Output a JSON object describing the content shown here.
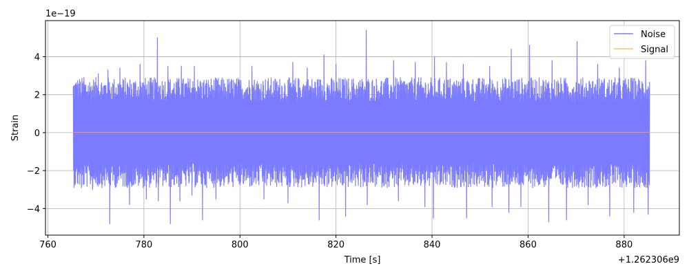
{
  "chart_data": {
    "type": "line",
    "xlabel": "Time [s]",
    "ylabel": "Strain",
    "x_offset_label": "+1.262306e9",
    "y_scale_label": "1e−19",
    "x_ticks": [
      760,
      780,
      800,
      820,
      840,
      860,
      880
    ],
    "x_tick_labels": [
      "760",
      "780",
      "800",
      "820",
      "840",
      "860",
      "880"
    ],
    "y_ticks": [
      -4,
      -2,
      0,
      2,
      4
    ],
    "y_tick_labels": [
      "−4",
      "−2",
      "0",
      "2",
      "4"
    ],
    "xlim": [
      759.5,
      891.5
    ],
    "ylim": [
      -5.4,
      5.9
    ],
    "x_data_range": [
      765.3,
      885.3
    ],
    "grid": true,
    "legend_position": "top-right",
    "series": [
      {
        "name": "Noise",
        "color": "#7b7bff",
        "typical_envelope": [
          -2.9,
          2.9
        ],
        "max": 5.4,
        "min": -4.8,
        "peaks": [
          {
            "x": 766.0,
            "y": 2.5
          },
          {
            "x": 767.5,
            "y": 2.9
          },
          {
            "x": 770.5,
            "y": 3.1
          },
          {
            "x": 772.5,
            "y": 3.3
          },
          {
            "x": 775.0,
            "y": 3.4
          },
          {
            "x": 779.2,
            "y": 3.6
          },
          {
            "x": 782.8,
            "y": 5.0
          },
          {
            "x": 785.0,
            "y": 3.5
          },
          {
            "x": 787.8,
            "y": 3.5
          },
          {
            "x": 790.5,
            "y": 3.5
          },
          {
            "x": 802.5,
            "y": 3.5
          },
          {
            "x": 811.0,
            "y": 3.7
          },
          {
            "x": 814.0,
            "y": 3.4
          },
          {
            "x": 817.5,
            "y": 4.1
          },
          {
            "x": 820.0,
            "y": 3.6
          },
          {
            "x": 826.3,
            "y": 5.4
          },
          {
            "x": 832.0,
            "y": 3.8
          },
          {
            "x": 836.5,
            "y": 3.7
          },
          {
            "x": 840.5,
            "y": 4.0
          },
          {
            "x": 843.0,
            "y": 3.7
          },
          {
            "x": 846.5,
            "y": 3.6
          },
          {
            "x": 852.0,
            "y": 3.5
          },
          {
            "x": 856.5,
            "y": 4.4
          },
          {
            "x": 860.3,
            "y": 4.6
          },
          {
            "x": 865.0,
            "y": 3.8
          },
          {
            "x": 870.2,
            "y": 4.8
          },
          {
            "x": 874.5,
            "y": 3.6
          },
          {
            "x": 879.0,
            "y": 3.4
          },
          {
            "x": 884.5,
            "y": 3.8
          }
        ],
        "troughs": [
          {
            "x": 767.0,
            "y": -2.9
          },
          {
            "x": 769.3,
            "y": -3.0
          },
          {
            "x": 772.9,
            "y": -4.8
          },
          {
            "x": 777.0,
            "y": -3.8
          },
          {
            "x": 780.5,
            "y": -3.5
          },
          {
            "x": 783.0,
            "y": -3.6
          },
          {
            "x": 785.5,
            "y": -4.8
          },
          {
            "x": 787.5,
            "y": -3.6
          },
          {
            "x": 790.0,
            "y": -3.3
          },
          {
            "x": 792.2,
            "y": -4.6
          },
          {
            "x": 795.0,
            "y": -3.5
          },
          {
            "x": 805.0,
            "y": -3.5
          },
          {
            "x": 810.0,
            "y": -3.7
          },
          {
            "x": 816.5,
            "y": -4.6
          },
          {
            "x": 822.0,
            "y": -4.4
          },
          {
            "x": 826.5,
            "y": -3.8
          },
          {
            "x": 833.0,
            "y": -3.6
          },
          {
            "x": 838.5,
            "y": -3.9
          },
          {
            "x": 840.3,
            "y": -4.5
          },
          {
            "x": 847.2,
            "y": -4.5
          },
          {
            "x": 852.5,
            "y": -3.9
          },
          {
            "x": 856.0,
            "y": -4.2
          },
          {
            "x": 858.5,
            "y": -3.9
          },
          {
            "x": 864.3,
            "y": -4.7
          },
          {
            "x": 868.0,
            "y": -4.6
          },
          {
            "x": 872.5,
            "y": -3.8
          },
          {
            "x": 877.0,
            "y": -4.4
          },
          {
            "x": 882.0,
            "y": -4.2
          },
          {
            "x": 885.0,
            "y": -4.3
          }
        ]
      },
      {
        "name": "Signal",
        "color": "#ff9f2e",
        "x": [
          765.3,
          885.3
        ],
        "y": [
          0.02,
          0.02
        ]
      }
    ]
  }
}
